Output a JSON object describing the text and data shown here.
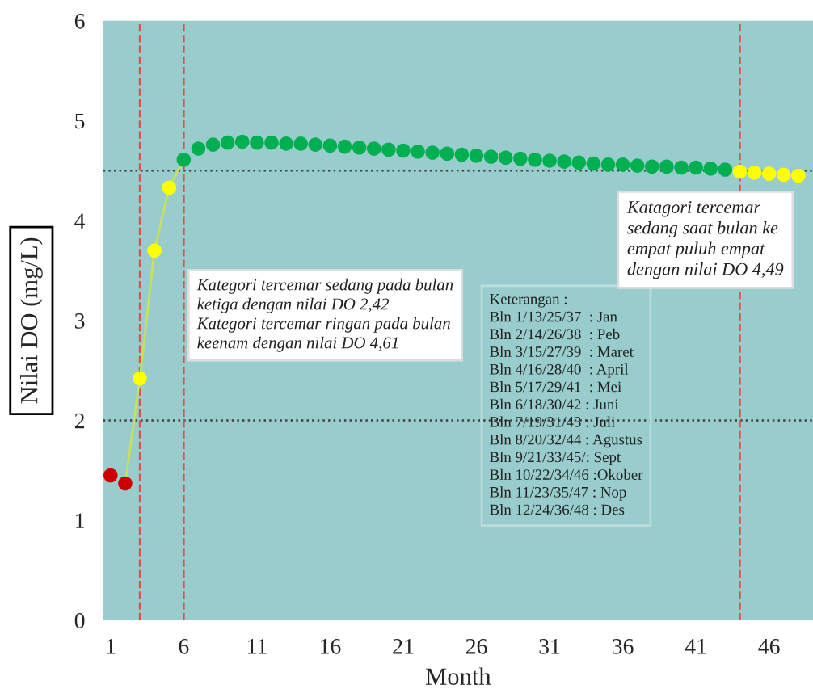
{
  "chart_data": {
    "type": "scatter",
    "xlabel": "Month",
    "ylabel": "Nilai DO (mg/L)",
    "x": [
      1,
      2,
      3,
      4,
      5,
      6,
      7,
      8,
      9,
      10,
      11,
      12,
      13,
      14,
      15,
      16,
      17,
      18,
      19,
      20,
      21,
      22,
      23,
      24,
      25,
      26,
      27,
      28,
      29,
      30,
      31,
      32,
      33,
      34,
      35,
      36,
      37,
      38,
      39,
      40,
      41,
      42,
      43,
      44,
      45,
      46,
      47,
      48
    ],
    "series": [
      {
        "marker": "circle",
        "values": [
          1.45,
          1.37,
          2.42,
          3.7,
          4.33,
          4.61,
          4.72,
          4.76,
          4.78,
          4.79,
          4.78,
          4.78,
          4.77,
          4.77,
          4.76,
          4.75,
          4.74,
          4.73,
          4.72,
          4.71,
          4.7,
          4.69,
          4.68,
          4.67,
          4.66,
          4.65,
          4.64,
          4.63,
          4.62,
          4.61,
          4.6,
          4.59,
          4.58,
          4.57,
          4.56,
          4.56,
          4.55,
          4.54,
          4.54,
          4.53,
          4.53,
          4.52,
          4.51,
          4.49,
          4.48,
          4.47,
          4.46,
          4.45
        ],
        "colors": [
          "#cc0000",
          "#cc0000",
          "#ffff00",
          "#ffff00",
          "#ffff00",
          "#00b050",
          "#00b050",
          "#00b050",
          "#00b050",
          "#00b050",
          "#00b050",
          "#00b050",
          "#00b050",
          "#00b050",
          "#00b050",
          "#00b050",
          "#00b050",
          "#00b050",
          "#00b050",
          "#00b050",
          "#00b050",
          "#00b050",
          "#00b050",
          "#00b050",
          "#00b050",
          "#00b050",
          "#00b050",
          "#00b050",
          "#00b050",
          "#00b050",
          "#00b050",
          "#00b050",
          "#00b050",
          "#00b050",
          "#00b050",
          "#00b050",
          "#00b050",
          "#00b050",
          "#00b050",
          "#00b050",
          "#00b050",
          "#00b050",
          "#00b050",
          "#ffff00",
          "#ffff00",
          "#ffff00",
          "#ffff00",
          "#ffff00"
        ]
      },
      {
        "type": "line",
        "color": "#c8e05a",
        "x": [
          2,
          3,
          4,
          5,
          6
        ],
        "values": [
          1.37,
          2.42,
          3.7,
          4.33,
          4.61
        ]
      }
    ],
    "xlim": [
      0.5,
      49
    ],
    "xticks": [
      1,
      6,
      11,
      16,
      21,
      26,
      31,
      36,
      41,
      46
    ],
    "ylim": [
      0,
      6
    ],
    "yticks": [
      0,
      1,
      2,
      3,
      4,
      5,
      6
    ],
    "grid": false,
    "legend": false,
    "ref_lines": [
      {
        "axis": "y",
        "value": 4.5,
        "color": "#404040",
        "line_style": "dotted"
      },
      {
        "axis": "y",
        "value": 2,
        "color": "#404040",
        "line_style": "dotted"
      },
      {
        "axis": "x",
        "value": 3,
        "color": "#e05050",
        "line_style": "dashed"
      },
      {
        "axis": "x",
        "value": 6,
        "color": "#e05050",
        "line_style": "dashed"
      },
      {
        "axis": "x",
        "value": 44,
        "color": "#e05050",
        "line_style": "dashed"
      }
    ],
    "annotations": [
      "Kategori tercemar sedang pada bulan\nketiga dengan nilai DO 2,42\nKategori tercemar ringan pada bulan\nkeenam dengan nilai DO 4,61",
      "Keterangan :\nBln 1/13/25/37  : Jan\nBln 2/14/26/38  : Peb\nBln 3/15/27/39  : Maret\nBln 4/16/28/40  : April\nBln 5/17/29/41  : Mei\nBln 6/18/30/42 : Juni\nBln 7/19/31/43 : Juli\nBln 8/20/32/44 : Agustus\nBln 9/21/33/45/: Sept\nBln 10/22/34/46 :Okober\nBln 11/23/35/47 : Nop\nBln 12/24/36/48 : Des",
      "Katagori tercemar\nsedang saat bulan ke\nempat puluh empat\ndengan nilai DO 4,49"
    ]
  }
}
